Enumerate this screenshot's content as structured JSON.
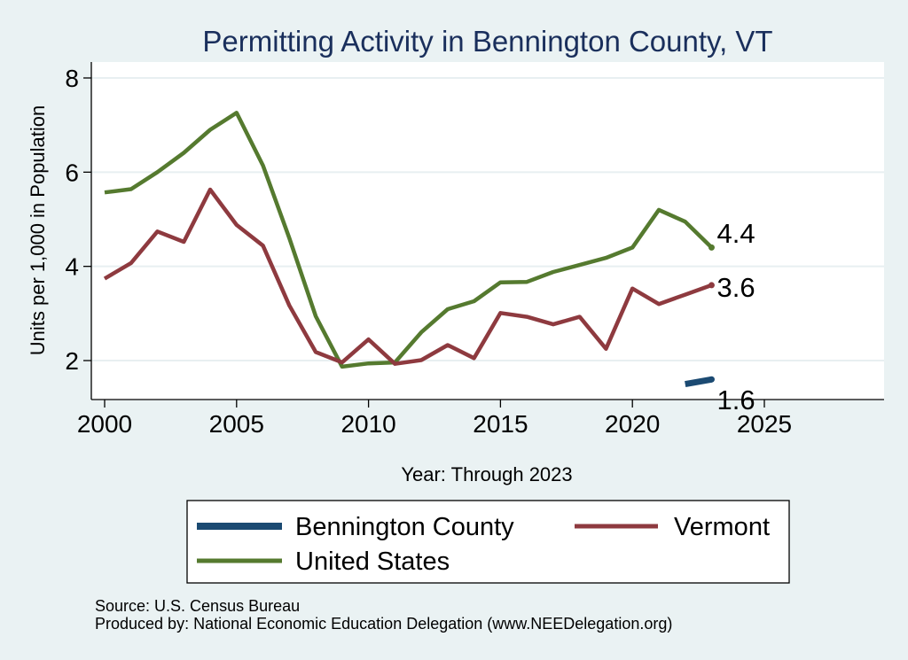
{
  "chart_data": {
    "type": "line",
    "title": "Permitting Activity in Bennington County, VT",
    "xlabel": "Year: Through 2023",
    "ylabel": "Units per 1,000 in Population",
    "xlim": [
      2000,
      2025
    ],
    "ylim": [
      1.3,
      8.3
    ],
    "x_ticks": [
      "2000",
      "2005",
      "2010",
      "2015",
      "2020",
      "2025"
    ],
    "y_ticks": [
      "2",
      "4",
      "6",
      "8"
    ],
    "grid": true,
    "legend_position": "bottom",
    "series": [
      {
        "name": "Bennington County",
        "color": "#1b4a72",
        "x": [
          2022,
          2023
        ],
        "values": [
          1.5,
          1.6
        ],
        "end_label": "1.6"
      },
      {
        "name": "Vermont",
        "color": "#8e3a3f",
        "x": [
          2000,
          2001,
          2002,
          2003,
          2004,
          2005,
          2006,
          2007,
          2008,
          2009,
          2010,
          2011,
          2012,
          2013,
          2014,
          2015,
          2016,
          2017,
          2018,
          2019,
          2020,
          2021,
          2022,
          2023
        ],
        "values": [
          3.74,
          4.07,
          4.74,
          4.52,
          5.63,
          4.88,
          4.44,
          3.17,
          2.18,
          1.96,
          2.45,
          1.93,
          2.01,
          2.33,
          2.05,
          3.01,
          2.93,
          2.77,
          2.93,
          2.25,
          3.53,
          3.2,
          3.4,
          3.6
        ],
        "end_label": "3.6"
      },
      {
        "name": "United States",
        "color": "#557a2f",
        "x": [
          2000,
          2001,
          2002,
          2003,
          2004,
          2005,
          2006,
          2007,
          2008,
          2009,
          2010,
          2011,
          2012,
          2013,
          2014,
          2015,
          2016,
          2017,
          2018,
          2019,
          2020,
          2021,
          2022,
          2023
        ],
        "values": [
          5.57,
          5.64,
          6.0,
          6.41,
          6.9,
          7.26,
          6.14,
          4.6,
          2.94,
          1.87,
          1.94,
          1.96,
          2.6,
          3.09,
          3.26,
          3.66,
          3.67,
          3.88,
          4.03,
          4.18,
          4.4,
          5.2,
          4.95,
          4.4
        ],
        "end_label": "4.4"
      }
    ]
  },
  "notes": {
    "source": "Source: U.S. Census Bureau",
    "produced_by": "Produced by: National Economic Education Delegation (www.NEEDelegation.org)"
  }
}
